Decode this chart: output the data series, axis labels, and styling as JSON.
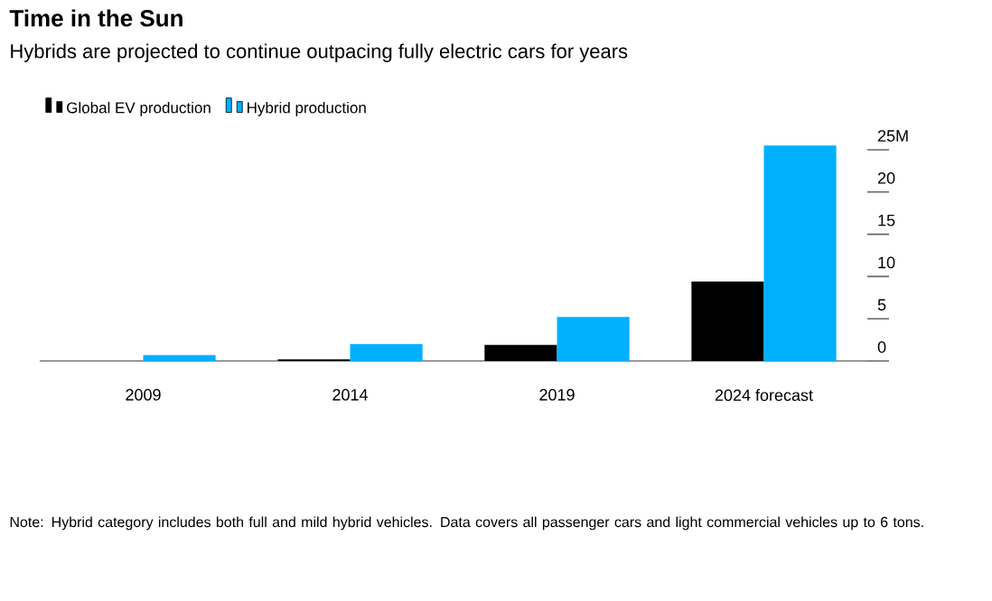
{
  "chart_data": {
    "type": "bar",
    "title": "Time in the Sun",
    "subtitle": "Hybrids are projected to continue outpacing fully electric cars for years",
    "categories": [
      "2009",
      "2014",
      "2019",
      "2024 forecast"
    ],
    "series": [
      {
        "name": "Global EV production",
        "color": "#000000",
        "values": [
          null,
          0.2,
          1.9,
          9.4
        ]
      },
      {
        "name": "Hybrid production",
        "color": "#00b0ff",
        "values": [
          0.7,
          2.0,
          5.2,
          25.5
        ]
      }
    ],
    "ylim": [
      0,
      26
    ],
    "yticks": [
      0,
      5,
      10,
      15,
      20,
      {
        "value": 25,
        "label": "25M"
      }
    ],
    "grid": false,
    "legend": "top left",
    "annotations": [
      "Note: Hybrid category includes both full and mild hybrid vehicles. Data covers all passenger cars and light commercial vehicles up to 6 tons."
    ]
  }
}
